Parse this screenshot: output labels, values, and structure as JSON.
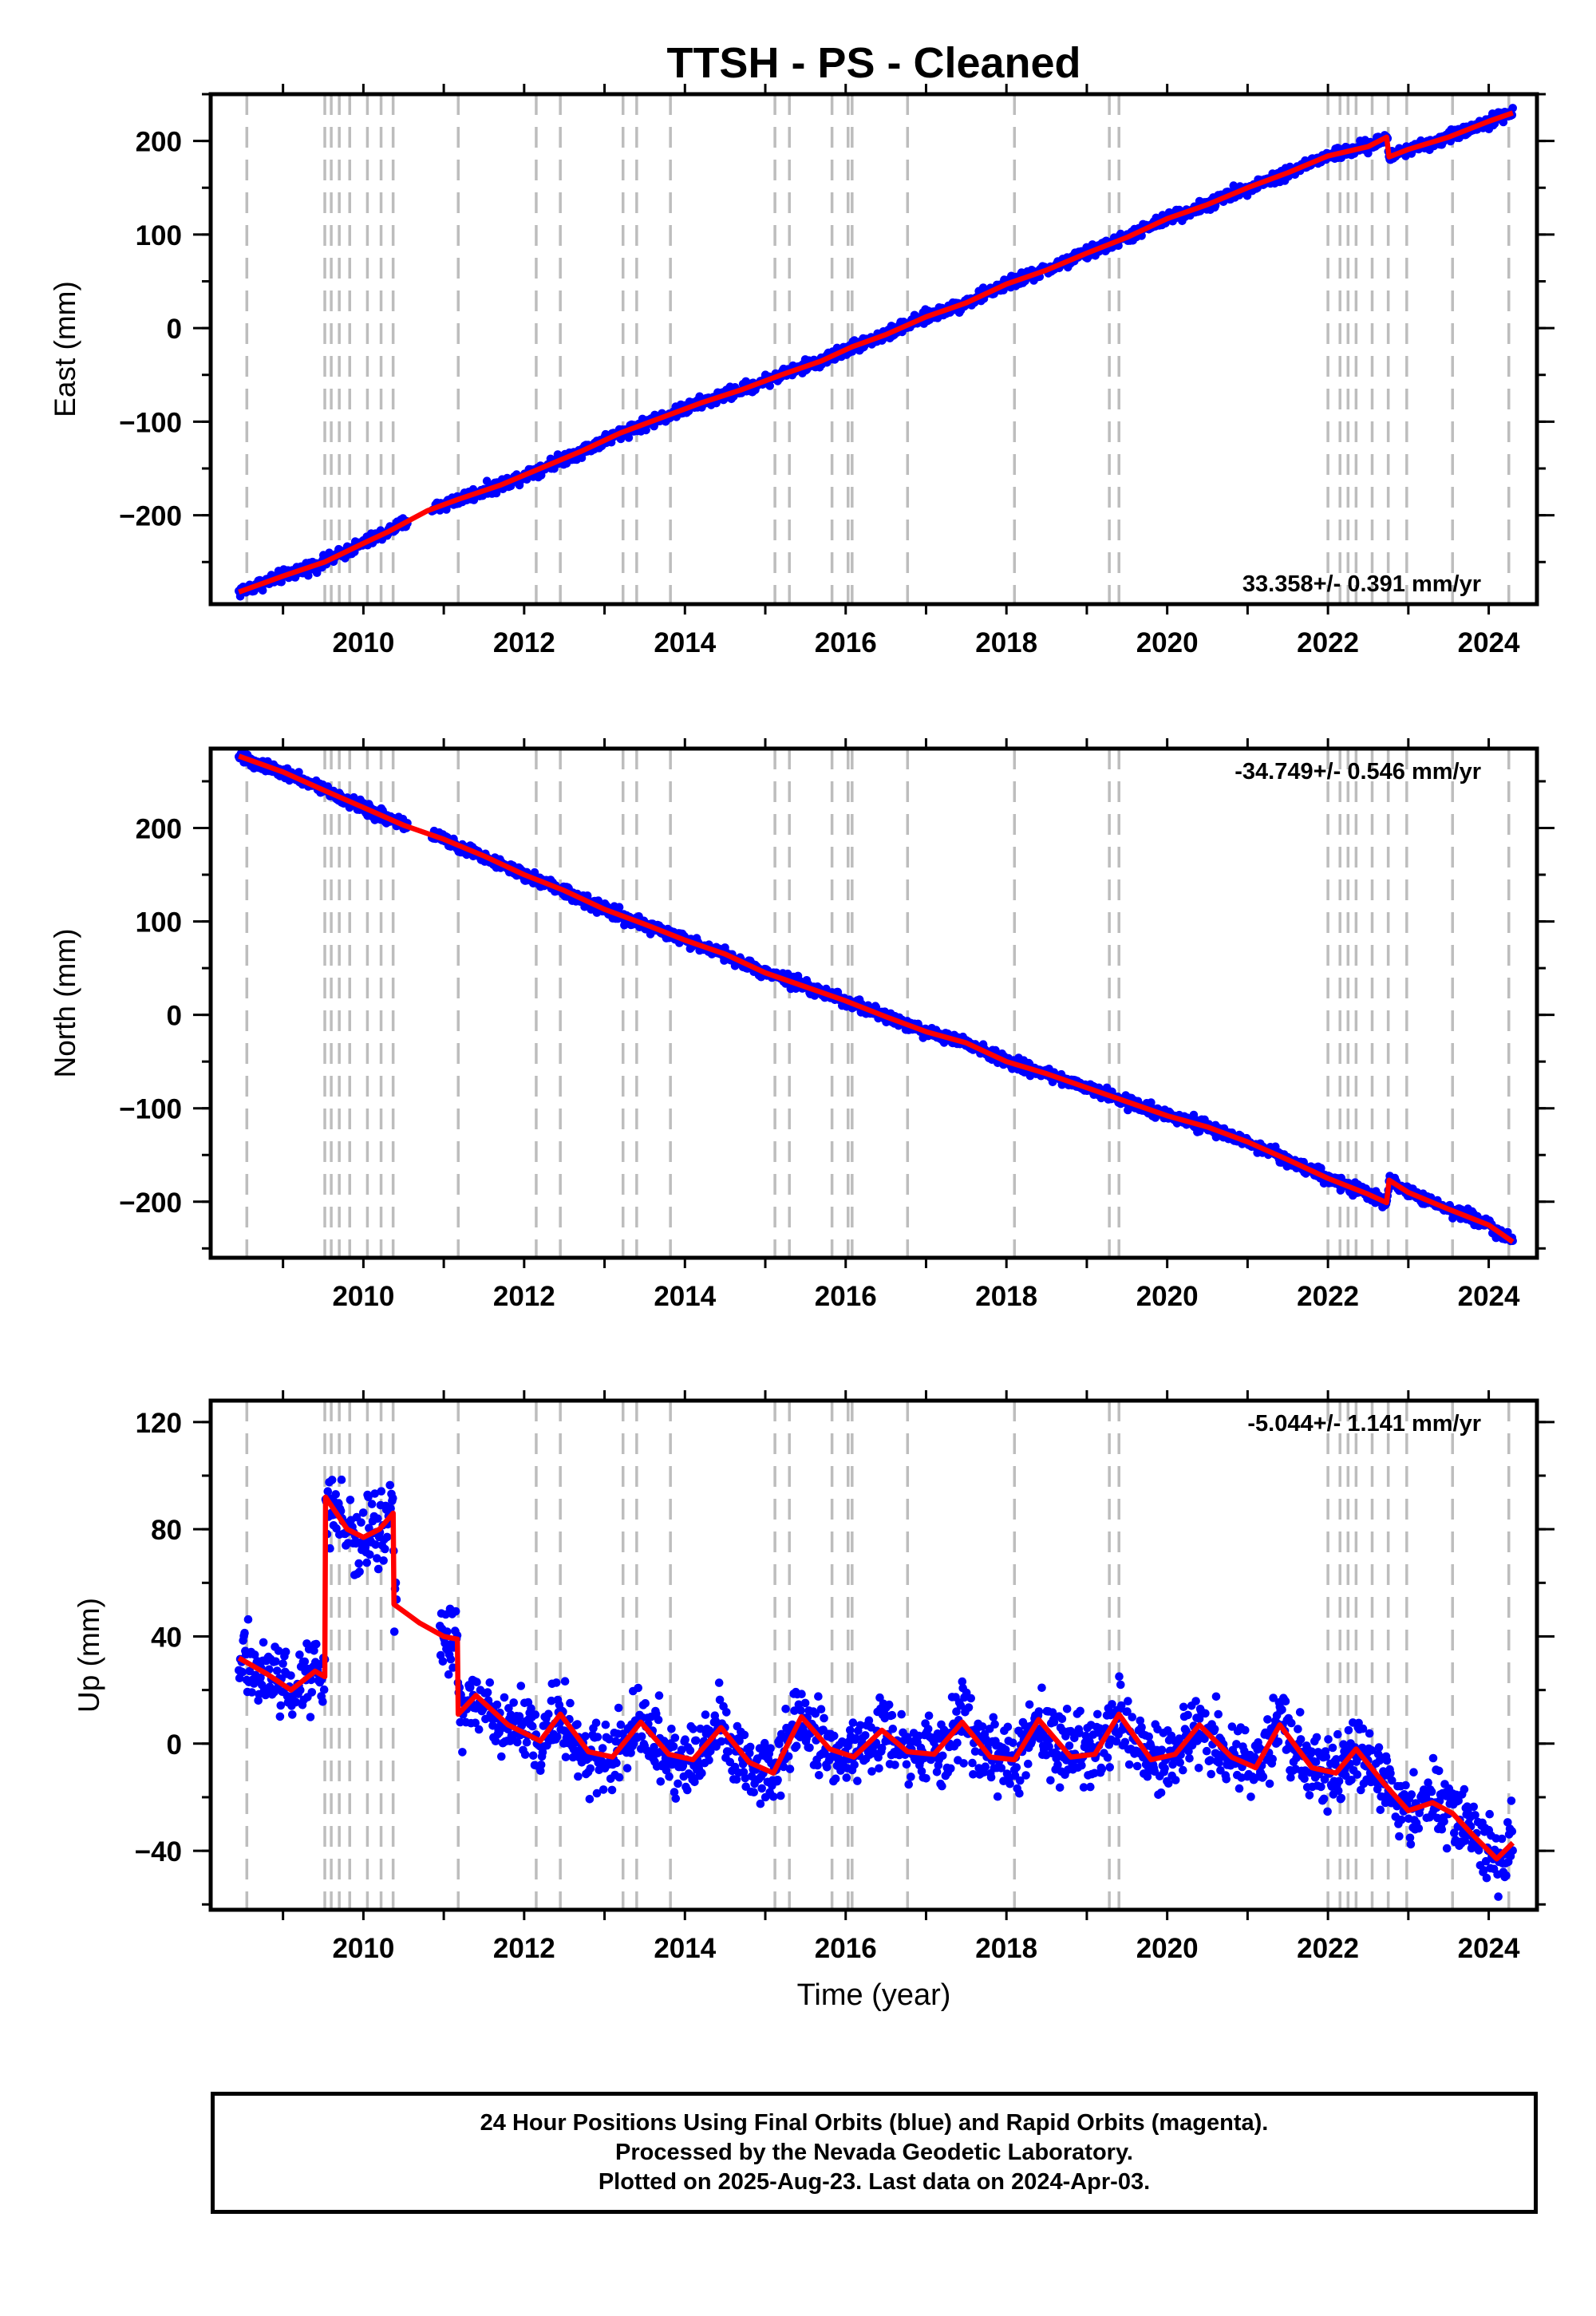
{
  "chart_data": {
    "type": "scatter",
    "title": "TTSH  - PS - Cleaned",
    "xlabel": "Time (year)",
    "xlim": [
      2008.1,
      2024.6
    ],
    "xticks": [
      2010,
      2012,
      2014,
      2016,
      2018,
      2020,
      2022,
      2024
    ],
    "legend": [],
    "colors": {
      "observations": "#0000ff",
      "model": "#ff0000",
      "steps": "#bdbdbd"
    },
    "step_epochs": [
      2008.55,
      2009.52,
      2009.6,
      2009.7,
      2009.83,
      2010.05,
      2010.22,
      2010.37,
      2011.18,
      2012.15,
      2012.45,
      2013.23,
      2013.4,
      2013.82,
      2015.12,
      2015.3,
      2015.83,
      2016.03,
      2016.08,
      2016.77,
      2018.1,
      2019.28,
      2019.4,
      2022.0,
      2022.15,
      2022.25,
      2022.35,
      2022.55,
      2022.75,
      2022.98,
      2023.55,
      2024.25
    ],
    "panels": [
      {
        "ylabel": "East (mm)",
        "ylim": [
          -295,
          250
        ],
        "yticks": [
          -200,
          -100,
          0,
          100,
          200
        ],
        "ytick_labels": [
          "−200",
          "−100",
          "0",
          "100",
          "200"
        ],
        "rate_label": "33.358+/- 0.391 mm/yr",
        "rate_position": "bottom-right",
        "x": [
          2008.45,
          2009.0,
          2009.52,
          2010.0,
          2010.3,
          2010.8,
          2011.18,
          2011.7,
          2012.2,
          2012.7,
          2013.2,
          2013.7,
          2014.2,
          2014.7,
          2015.2,
          2015.7,
          2016.08,
          2016.5,
          2017.0,
          2017.5,
          2018.0,
          2018.5,
          2019.0,
          2019.5,
          2020.0,
          2020.5,
          2021.0,
          2021.5,
          2022.0,
          2022.5,
          2022.73,
          2022.76,
          2023.0,
          2023.5,
          2024.0,
          2024.3
        ],
        "y": [
          -282,
          -265,
          -250,
          -230,
          -218,
          -195,
          -183,
          -168,
          -150,
          -132,
          -112,
          -96,
          -80,
          -66,
          -50,
          -35,
          -20,
          -7,
          12,
          27,
          47,
          62,
          80,
          97,
          117,
          132,
          150,
          166,
          184,
          194,
          204,
          183,
          191,
          204,
          221,
          230
        ]
      },
      {
        "ylabel": "North (mm)",
        "ylim": [
          -260,
          285
        ],
        "yticks": [
          -200,
          -100,
          0,
          100,
          200
        ],
        "ytick_labels": [
          "−200",
          "−100",
          "0",
          "100",
          "200"
        ],
        "rate_label": "-34.749+/- 0.546 mm/yr",
        "rate_position": "top-right",
        "x": [
          2008.45,
          2009.0,
          2009.52,
          2010.0,
          2010.5,
          2011.0,
          2011.5,
          2012.0,
          2012.5,
          2013.0,
          2013.5,
          2014.0,
          2014.5,
          2015.0,
          2015.5,
          2016.0,
          2016.5,
          2017.0,
          2017.5,
          2018.0,
          2018.5,
          2019.0,
          2019.5,
          2020.0,
          2020.5,
          2021.0,
          2021.5,
          2022.0,
          2022.5,
          2022.73,
          2022.76,
          2023.0,
          2023.5,
          2024.0,
          2024.3
        ],
        "y": [
          277,
          260,
          240,
          222,
          203,
          188,
          170,
          150,
          133,
          113,
          97,
          80,
          65,
          45,
          30,
          15,
          -2,
          -18,
          -30,
          -50,
          -63,
          -78,
          -93,
          -108,
          -120,
          -136,
          -155,
          -175,
          -192,
          -201,
          -177,
          -190,
          -208,
          -225,
          -243
        ]
      },
      {
        "ylabel": "Up (mm)",
        "ylim": [
          -62,
          128
        ],
        "yticks": [
          -40,
          0,
          40,
          80,
          120
        ],
        "ytick_labels": [
          "−40",
          "0",
          "40",
          "80",
          "120"
        ],
        "rate_label": "-5.044+/- 1.141 mm/yr",
        "rate_position": "top-right",
        "x": [
          2008.45,
          2008.8,
          2009.1,
          2009.4,
          2009.52,
          2009.53,
          2009.8,
          2010.0,
          2010.2,
          2010.37,
          2010.38,
          2010.7,
          2011.0,
          2011.17,
          2011.18,
          2011.4,
          2011.8,
          2012.2,
          2012.45,
          2012.8,
          2013.1,
          2013.45,
          2013.8,
          2014.1,
          2014.45,
          2014.8,
          2015.1,
          2015.45,
          2015.8,
          2016.1,
          2016.45,
          2016.77,
          2017.1,
          2017.45,
          2017.8,
          2018.1,
          2018.4,
          2018.8,
          2019.1,
          2019.4,
          2019.8,
          2020.1,
          2020.4,
          2020.8,
          2021.1,
          2021.4,
          2021.8,
          2022.1,
          2022.35,
          2022.7,
          2023.0,
          2023.3,
          2023.55,
          2023.8,
          2024.1,
          2024.3
        ],
        "y": [
          32,
          26,
          20,
          27,
          25,
          92,
          80,
          77,
          80,
          86,
          52,
          45,
          40,
          39,
          11,
          18,
          7,
          1,
          11,
          -3,
          -5,
          8,
          -4,
          -6,
          6,
          -7,
          -11,
          10,
          -2,
          -5,
          5,
          -3,
          -4,
          8,
          -5,
          -6,
          9,
          -5,
          -4,
          11,
          -6,
          -4,
          7,
          -5,
          -9,
          7,
          -9,
          -11,
          -2,
          -15,
          -25,
          -22,
          -26,
          -34,
          -43,
          -37
        ]
      }
    ]
  },
  "footer": {
    "line1": "24 Hour Positions Using Final Orbits (blue) and Rapid Orbits (magenta).",
    "line2": "Processed by the Nevada Geodetic Laboratory.",
    "line3": "Plotted on 2025-Aug-23. Last data on 2024-Apr-03."
  }
}
